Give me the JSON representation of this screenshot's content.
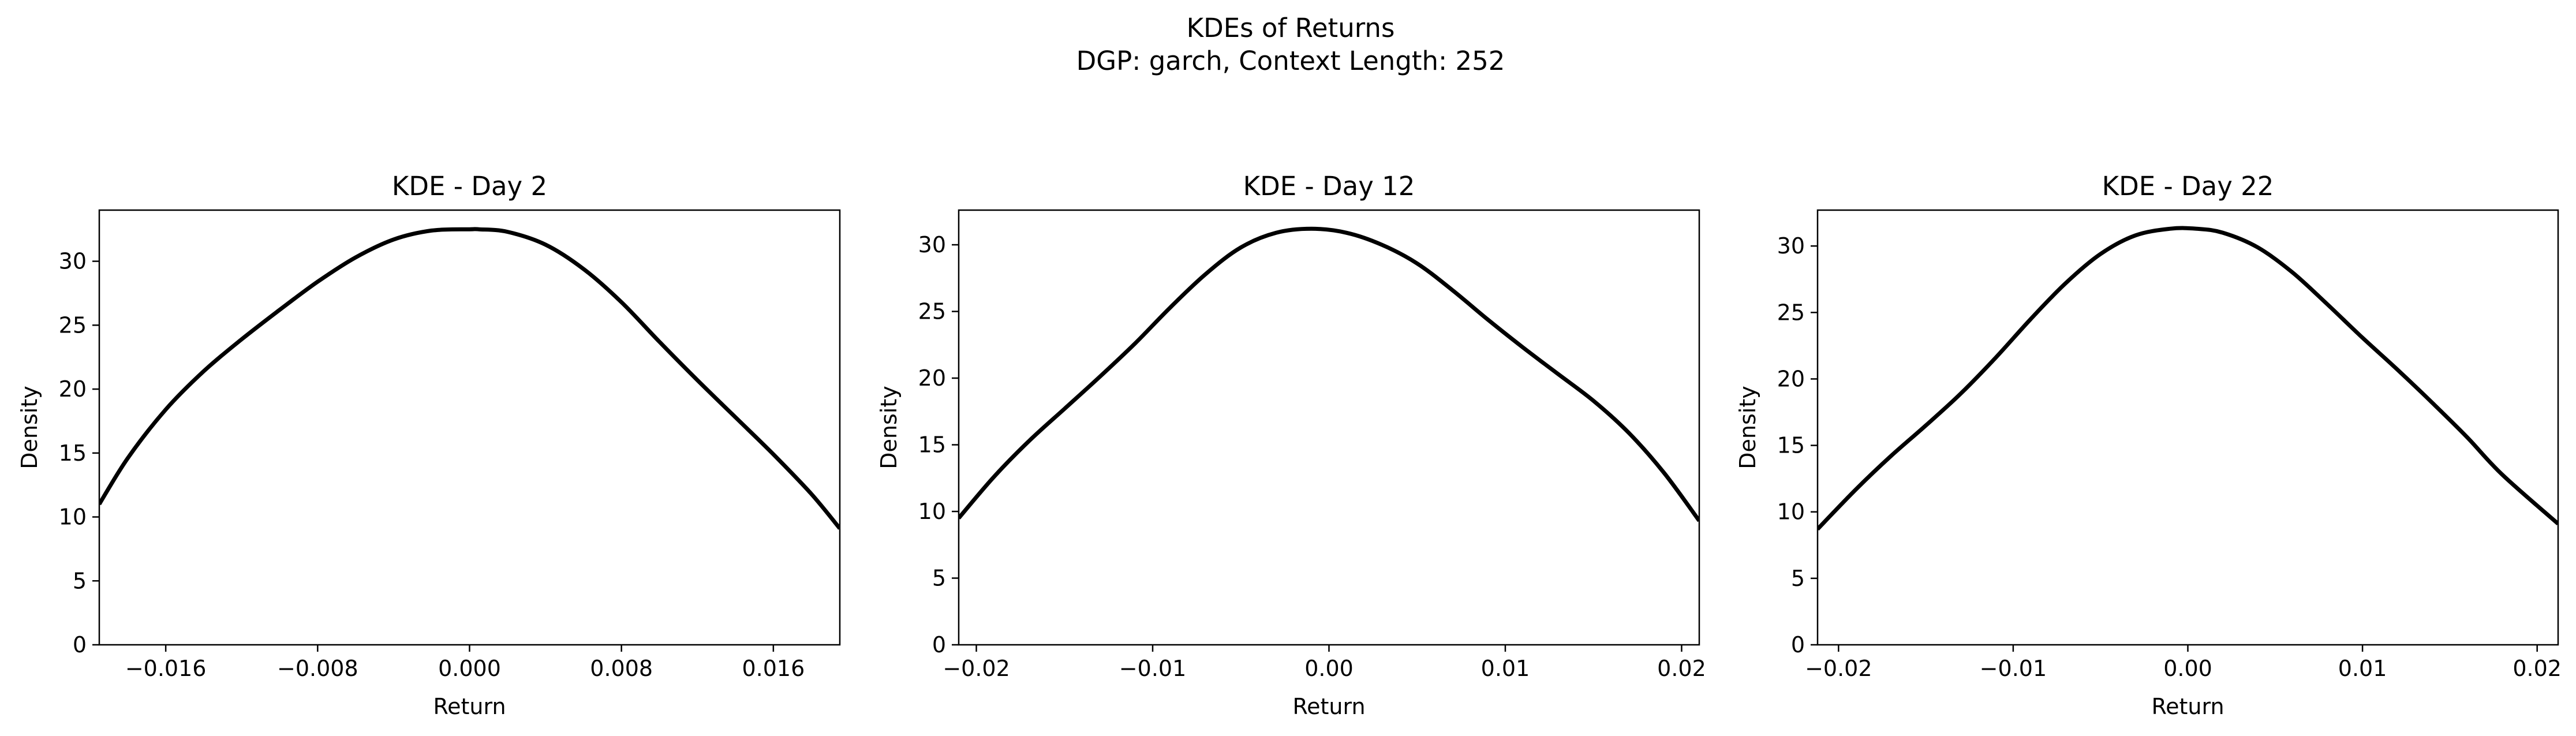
{
  "figure": {
    "suptitle_line1": "KDEs of Returns",
    "suptitle_line2": "DGP: garch, Context Length: 252"
  },
  "chart_data": [
    {
      "type": "line",
      "title": "KDE - Day 2",
      "xlabel": "Return",
      "ylabel": "Density",
      "xlim": [
        -0.0195,
        0.0195
      ],
      "ylim": [
        0,
        34
      ],
      "xticks": [
        -0.016,
        -0.008,
        0.0,
        0.008,
        0.016
      ],
      "xtick_labels": [
        "−0.016",
        "−0.008",
        "0.000",
        "0.008",
        "0.016"
      ],
      "yticks": [
        0,
        5,
        10,
        15,
        20,
        25,
        30
      ],
      "ytick_labels": [
        "0",
        "5",
        "10",
        "15",
        "20",
        "25",
        "30"
      ],
      "grid": false,
      "series": [
        {
          "color": "#000000",
          "x": [
            -0.0195,
            -0.018,
            -0.016,
            -0.014,
            -0.012,
            -0.01,
            -0.008,
            -0.006,
            -0.004,
            -0.002,
            0.0,
            0.0005,
            0.002,
            0.004,
            0.006,
            0.008,
            0.01,
            0.012,
            0.014,
            0.016,
            0.018,
            0.0195
          ],
          "y": [
            11.0,
            14.6,
            18.4,
            21.4,
            23.9,
            26.2,
            28.4,
            30.3,
            31.7,
            32.4,
            32.5,
            32.5,
            32.3,
            31.3,
            29.4,
            26.8,
            23.7,
            20.7,
            17.8,
            14.9,
            11.8,
            9.1
          ]
        }
      ]
    },
    {
      "type": "line",
      "title": "KDE - Day 12",
      "xlabel": "Return",
      "ylabel": "Density",
      "xlim": [
        -0.021,
        0.021
      ],
      "ylim": [
        0,
        32.6
      ],
      "xticks": [
        -0.02,
        -0.01,
        0.0,
        0.01,
        0.02
      ],
      "xtick_labels": [
        "−0.02",
        "−0.01",
        "0.00",
        "0.01",
        "0.02"
      ],
      "yticks": [
        0,
        5,
        10,
        15,
        20,
        25,
        30
      ],
      "ytick_labels": [
        "0",
        "5",
        "10",
        "15",
        "20",
        "25",
        "30"
      ],
      "grid": false,
      "series": [
        {
          "color": "#000000",
          "x": [
            -0.021,
            -0.019,
            -0.017,
            -0.015,
            -0.013,
            -0.011,
            -0.009,
            -0.007,
            -0.005,
            -0.003,
            -0.001,
            0.001,
            0.003,
            0.005,
            0.007,
            0.009,
            0.011,
            0.013,
            0.015,
            0.017,
            0.019,
            0.021
          ],
          "y": [
            9.5,
            12.6,
            15.3,
            17.7,
            20.1,
            22.6,
            25.3,
            27.8,
            29.8,
            30.9,
            31.2,
            30.9,
            30.0,
            28.6,
            26.6,
            24.4,
            22.3,
            20.3,
            18.3,
            15.9,
            12.9,
            9.3
          ]
        }
      ]
    },
    {
      "type": "line",
      "title": "KDE - Day 22",
      "xlabel": "Return",
      "ylabel": "Density",
      "xlim": [
        -0.0212,
        0.0212
      ],
      "ylim": [
        0,
        32.7
      ],
      "xticks": [
        -0.02,
        -0.01,
        0.0,
        0.01,
        0.02
      ],
      "xtick_labels": [
        "−0.02",
        "−0.01",
        "0.00",
        "0.01",
        "0.02"
      ],
      "yticks": [
        0,
        5,
        10,
        15,
        20,
        25,
        30
      ],
      "ytick_labels": [
        "0",
        "5",
        "10",
        "15",
        "20",
        "25",
        "30"
      ],
      "grid": false,
      "series": [
        {
          "color": "#000000",
          "x": [
            -0.0212,
            -0.019,
            -0.017,
            -0.015,
            -0.013,
            -0.011,
            -0.009,
            -0.007,
            -0.005,
            -0.003,
            -0.001,
            0.0005,
            0.002,
            0.004,
            0.006,
            0.008,
            0.01,
            0.012,
            0.014,
            0.016,
            0.018,
            0.0212
          ],
          "y": [
            8.7,
            11.7,
            14.2,
            16.5,
            18.9,
            21.6,
            24.5,
            27.2,
            29.4,
            30.8,
            31.3,
            31.3,
            31.0,
            29.9,
            28.0,
            25.6,
            23.1,
            20.7,
            18.2,
            15.6,
            12.8,
            9.1
          ]
        }
      ]
    }
  ]
}
